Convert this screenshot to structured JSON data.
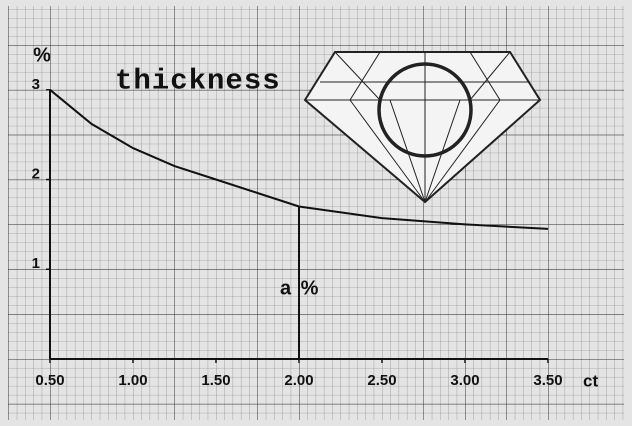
{
  "chart_data": {
    "type": "line",
    "title": "thickness",
    "x_label": "ct",
    "y_label": "%",
    "x": [
      0.5,
      0.75,
      1.0,
      1.25,
      1.5,
      1.75,
      2.0,
      2.5,
      3.0,
      3.5
    ],
    "series": [
      {
        "values": [
          3.0,
          2.62,
          2.35,
          2.15,
          2.0,
          1.85,
          1.7,
          1.57,
          1.5,
          1.45
        ],
        "color": "#111111"
      }
    ],
    "xlim": [
      0.5,
      3.5
    ],
    "ylim": [
      0,
      3.7
    ],
    "xticks": [
      {
        "value": 0.5,
        "label": "0.50"
      },
      {
        "value": 1.0,
        "label": "1.00"
      },
      {
        "value": 1.5,
        "label": "1.50"
      },
      {
        "value": 2.0,
        "label": "2.00"
      },
      {
        "value": 2.5,
        "label": "2.50"
      },
      {
        "value": 3.0,
        "label": "3.00"
      },
      {
        "value": 3.5,
        "label": "3.50"
      }
    ],
    "yticks": [
      1,
      2,
      3
    ],
    "marker": {
      "x": 2.0,
      "y": 1.7,
      "label": "a %"
    }
  }
}
